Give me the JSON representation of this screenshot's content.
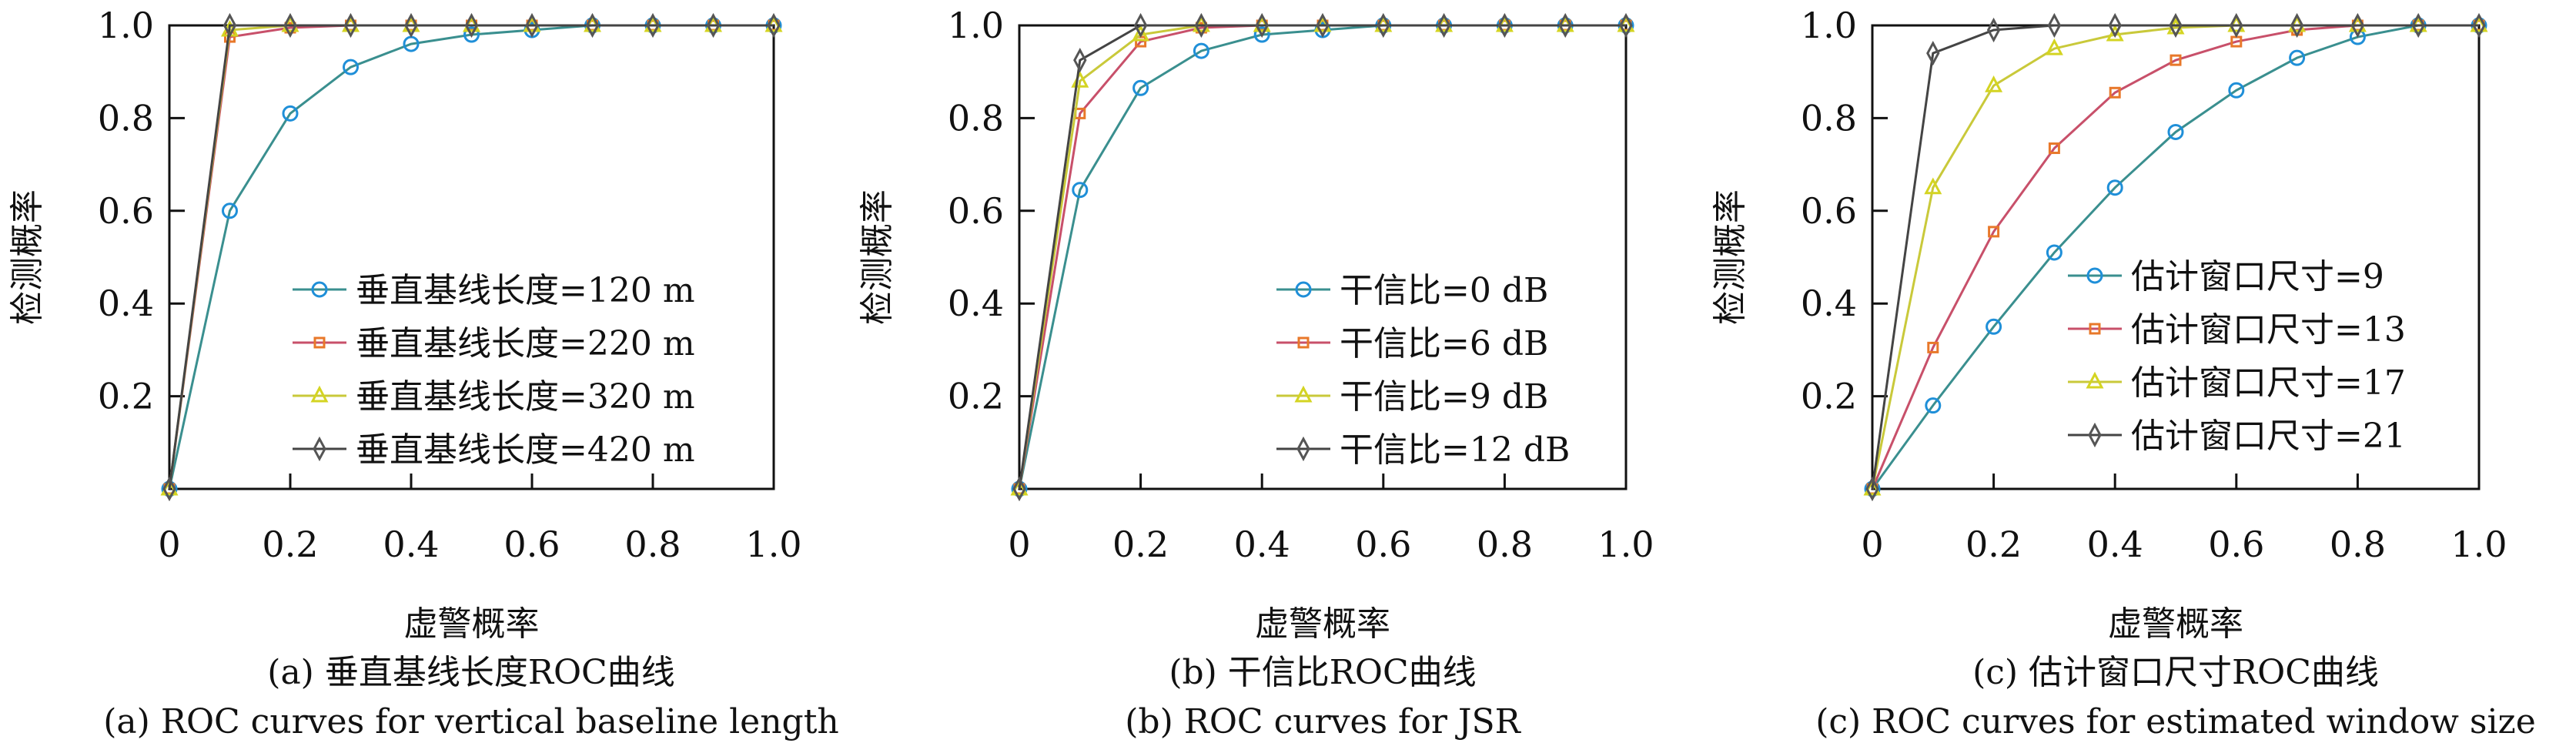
{
  "chart_data": [
    {
      "type": "line",
      "xlabel": "虚警概率",
      "ylabel": "检测概率",
      "xlim": [
        0,
        1
      ],
      "ylim": [
        0,
        1
      ],
      "xticks": [
        "0",
        "0.2",
        "0.4",
        "0.6",
        "0.8",
        "1.0"
      ],
      "yticks": [
        "0.2",
        "0.4",
        "0.6",
        "0.8",
        "1.0"
      ],
      "grid": false,
      "legend_placement": "lower-right",
      "caption_cn": "(a) 垂直基线长度ROC曲线",
      "caption_en": "(a) ROC curves for vertical baseline length",
      "x": [
        0,
        0.1,
        0.2,
        0.3,
        0.4,
        0.5,
        0.6,
        0.7,
        0.8,
        0.9,
        1.0
      ],
      "series": [
        {
          "name": "垂直基线长度=120 m",
          "marker": "circle",
          "color": "#1f8fd8",
          "values": [
            0,
            0.6,
            0.81,
            0.91,
            0.96,
            0.98,
            0.99,
            1,
            1,
            1,
            1
          ]
        },
        {
          "name": "垂直基线长度=220 m",
          "marker": "square",
          "color": "#e8782a",
          "values": [
            0,
            0.975,
            0.995,
            1,
            1,
            1,
            1,
            1,
            1,
            1,
            1
          ]
        },
        {
          "name": "垂直基线长度=320 m",
          "marker": "triangle",
          "color": "#d4d422",
          "values": [
            0,
            0.99,
            1,
            1,
            1,
            1,
            1,
            1,
            1,
            1,
            1
          ]
        },
        {
          "name": "垂直基线长度=420 m",
          "marker": "diamond",
          "color": "#555555",
          "values": [
            0,
            1,
            1,
            1,
            1,
            1,
            1,
            1,
            1,
            1,
            1
          ]
        }
      ]
    },
    {
      "type": "line",
      "xlabel": "虚警概率",
      "ylabel": "检测概率",
      "xlim": [
        0,
        1
      ],
      "ylim": [
        0,
        1
      ],
      "xticks": [
        "0",
        "0.2",
        "0.4",
        "0.6",
        "0.8",
        "1.0"
      ],
      "yticks": [
        "0.2",
        "0.4",
        "0.6",
        "0.8",
        "1.0"
      ],
      "grid": false,
      "legend_placement": "lower-right",
      "caption_cn": "(b) 干信比ROC曲线",
      "caption_en": "(b) ROC curves for JSR",
      "x": [
        0,
        0.1,
        0.2,
        0.3,
        0.4,
        0.5,
        0.6,
        0.7,
        0.8,
        0.9,
        1.0
      ],
      "series": [
        {
          "name": "干信比=0 dB",
          "marker": "circle",
          "color": "#1f8fd8",
          "values": [
            0,
            0.645,
            0.865,
            0.945,
            0.98,
            0.99,
            1,
            1,
            1,
            1,
            1
          ]
        },
        {
          "name": "干信比=6 dB",
          "marker": "square",
          "color": "#e8782a",
          "values": [
            0,
            0.81,
            0.965,
            0.995,
            1,
            1,
            1,
            1,
            1,
            1,
            1
          ]
        },
        {
          "name": "干信比=9 dB",
          "marker": "triangle",
          "color": "#d4d422",
          "values": [
            0,
            0.88,
            0.98,
            1,
            1,
            1,
            1,
            1,
            1,
            1,
            1
          ]
        },
        {
          "name": "干信比=12 dB",
          "marker": "diamond",
          "color": "#555555",
          "values": [
            0,
            0.925,
            1,
            1,
            1,
            1,
            1,
            1,
            1,
            1,
            1
          ]
        }
      ]
    },
    {
      "type": "line",
      "xlabel": "虚警概率",
      "ylabel": "检测概率",
      "xlim": [
        0,
        1
      ],
      "ylim": [
        0,
        1
      ],
      "xticks": [
        "0",
        "0.2",
        "0.4",
        "0.6",
        "0.8",
        "1.0"
      ],
      "yticks": [
        "0.2",
        "0.4",
        "0.6",
        "0.8",
        "1.0"
      ],
      "grid": false,
      "legend_placement": "lower-right",
      "caption_cn": "(c) 估计窗口尺寸ROC曲线",
      "caption_en": "(c) ROC curves for estimated window size",
      "x": [
        0,
        0.1,
        0.2,
        0.3,
        0.4,
        0.5,
        0.6,
        0.7,
        0.8,
        0.9,
        1.0
      ],
      "series": [
        {
          "name": "估计窗口尺寸=9",
          "marker": "circle",
          "color": "#1f8fd8",
          "values": [
            0,
            0.18,
            0.35,
            0.51,
            0.65,
            0.77,
            0.86,
            0.93,
            0.975,
            1,
            1
          ]
        },
        {
          "name": "估计窗口尺寸=13",
          "marker": "square",
          "color": "#e8782a",
          "values": [
            0,
            0.305,
            0.555,
            0.735,
            0.855,
            0.925,
            0.965,
            0.99,
            1,
            1,
            1
          ]
        },
        {
          "name": "估计窗口尺寸=17",
          "marker": "triangle",
          "color": "#d4d422",
          "values": [
            0,
            0.65,
            0.87,
            0.95,
            0.98,
            0.995,
            1,
            1,
            1,
            1,
            1
          ]
        },
        {
          "name": "估计窗口尺寸=21",
          "marker": "diamond",
          "color": "#555555",
          "values": [
            0,
            0.94,
            0.99,
            1,
            1,
            1,
            1,
            1,
            1,
            1,
            1
          ]
        }
      ]
    }
  ]
}
